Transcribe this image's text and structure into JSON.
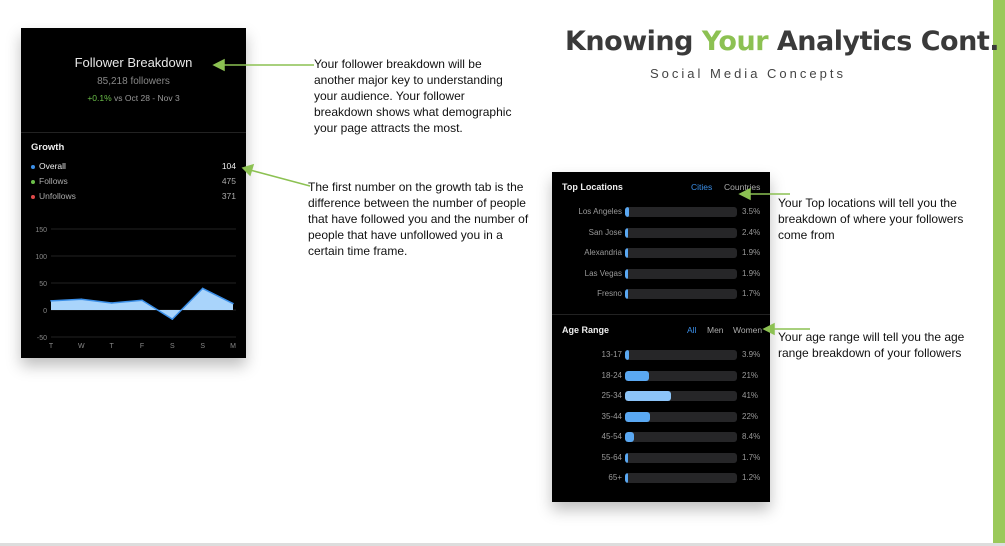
{
  "slide": {
    "title_pre": "Knowing ",
    "title_highlight": "Your",
    "title_post": " Analytics Cont.",
    "subtitle": "Social Media Concepts",
    "accent_color": "#8cc152"
  },
  "follower_breakdown": {
    "title": "Follower Breakdown",
    "followers": "85,218 followers",
    "change_pct": "+0.1%",
    "change_period": " vs Oct 28 - Nov 3",
    "growth_title": "Growth",
    "growth_items": [
      {
        "label": "Overall",
        "value": "104",
        "color": "#3b8fe8"
      },
      {
        "label": "Follows",
        "value": "475",
        "color": "#6cc04a"
      },
      {
        "label": "Unfollows",
        "value": "371",
        "color": "#e04a4a"
      }
    ]
  },
  "chart_data": {
    "type": "area",
    "categories": [
      "T",
      "W",
      "T",
      "F",
      "S",
      "S",
      "M"
    ],
    "values": [
      17,
      20,
      13,
      18,
      -17,
      40,
      12
    ],
    "yticks": [
      150,
      100,
      50,
      0,
      -50
    ],
    "ylim": [
      -50,
      150
    ],
    "grid": true,
    "color": "#a9d4fb"
  },
  "top_locations": {
    "title": "Top Locations",
    "tabs": [
      {
        "label": "Cities",
        "active": true
      },
      {
        "label": "Countries",
        "active": false
      }
    ],
    "rows": [
      {
        "label": "Los Angeles",
        "value": "3.5%",
        "pct": 3.5
      },
      {
        "label": "San Jose",
        "value": "2.4%",
        "pct": 2.4
      },
      {
        "label": "Alexandria",
        "value": "1.9%",
        "pct": 1.9
      },
      {
        "label": "Las Vegas",
        "value": "1.9%",
        "pct": 1.9
      },
      {
        "label": "Fresno",
        "value": "1.7%",
        "pct": 1.7
      }
    ]
  },
  "age_range": {
    "title": "Age Range",
    "tabs": [
      {
        "label": "All",
        "active": true
      },
      {
        "label": "Men",
        "active": false
      },
      {
        "label": "Women",
        "active": false
      }
    ],
    "rows": [
      {
        "label": "13-17",
        "value": "3.9%",
        "pct": 3.9
      },
      {
        "label": "18-24",
        "value": "21%",
        "pct": 21
      },
      {
        "label": "25-34",
        "value": "41%",
        "pct": 41
      },
      {
        "label": "35-44",
        "value": "22%",
        "pct": 22
      },
      {
        "label": "45-54",
        "value": "8.4%",
        "pct": 8.4
      },
      {
        "label": "55-64",
        "value": "1.7%",
        "pct": 1.7
      },
      {
        "label": "65+",
        "value": "1.2%",
        "pct": 1.2
      }
    ]
  },
  "notes": {
    "breakdown": "Your follower breakdown will be another major key to understanding your audience. Your follower breakdown shows what demographic your page attracts the most.",
    "growth": "The first number on the growth tab is the difference between the number of people that have followed you and the number of people that have unfollowed you in a certain time frame.",
    "locations": "Your Top locations will tell you the breakdown of where your followers come from",
    "age": "Your age range will tell you the age range breakdown of your followers"
  }
}
